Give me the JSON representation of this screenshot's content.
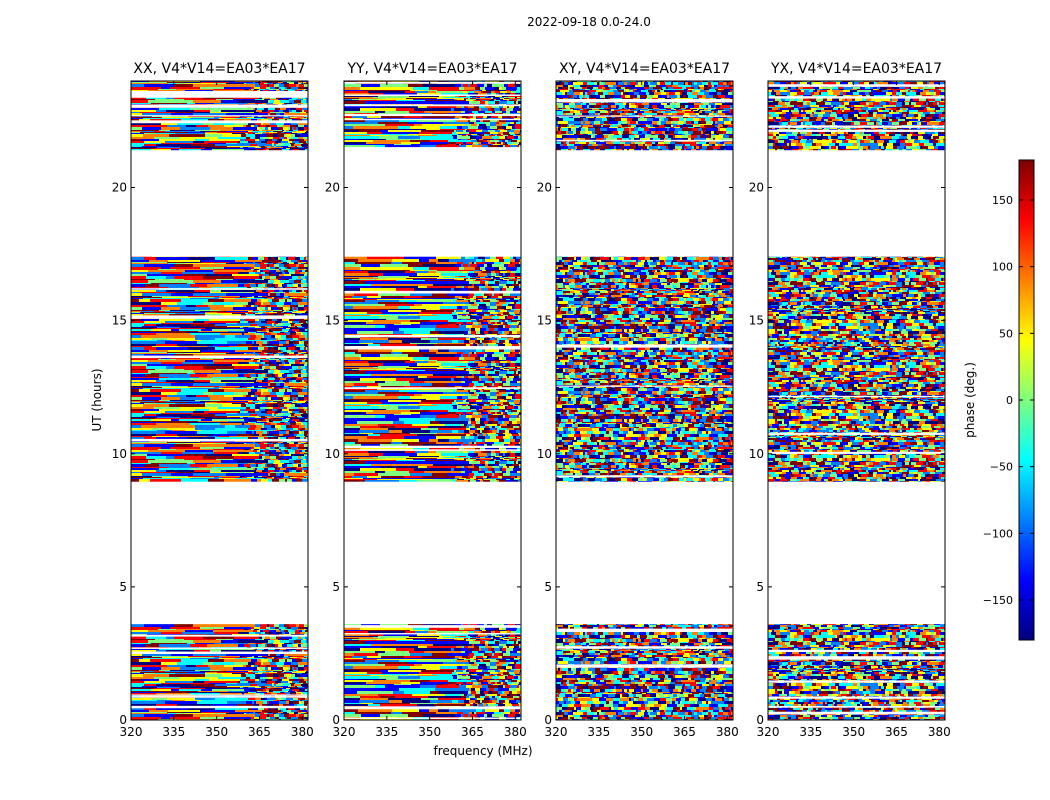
{
  "figure": {
    "suptitle": "2022-09-18 0.0-24.0"
  },
  "chart_data": {
    "type": "heatmap",
    "xlabel": "frequency (MHz)",
    "ylabel": "UT (hours)",
    "xlim": [
      320,
      382
    ],
    "ylim": [
      0,
      24
    ],
    "x_ticks": [
      320,
      335,
      350,
      365,
      380
    ],
    "y_ticks": [
      0,
      5,
      10,
      15,
      20
    ],
    "panels": [
      {
        "title": "XX, V4*V14=EA03*EA17"
      },
      {
        "title": "YY, V4*V14=EA03*EA17"
      },
      {
        "title": "XY, V4*V14=EA03*EA17"
      },
      {
        "title": "YX, V4*V14=EA03*EA17"
      }
    ],
    "data_blocks_ut": [
      [
        0.0,
        3.6
      ],
      [
        8.95,
        17.4
      ],
      [
        21.4,
        24.0
      ]
    ],
    "colorbar": {
      "label": "phase (deg.)",
      "range": [
        -180,
        180
      ],
      "ticks": [
        -150,
        -100,
        -50,
        0,
        50,
        100,
        150
      ],
      "tick_labels": [
        "−150",
        "−100",
        "−50",
        "0",
        "50",
        "100",
        "150"
      ],
      "colormap": "jet",
      "colors": [
        "#00007f",
        "#0000ff",
        "#007fff",
        "#00ffff",
        "#7fff7f",
        "#ffff00",
        "#ff7f00",
        "#ff0000",
        "#7f0000"
      ]
    }
  }
}
